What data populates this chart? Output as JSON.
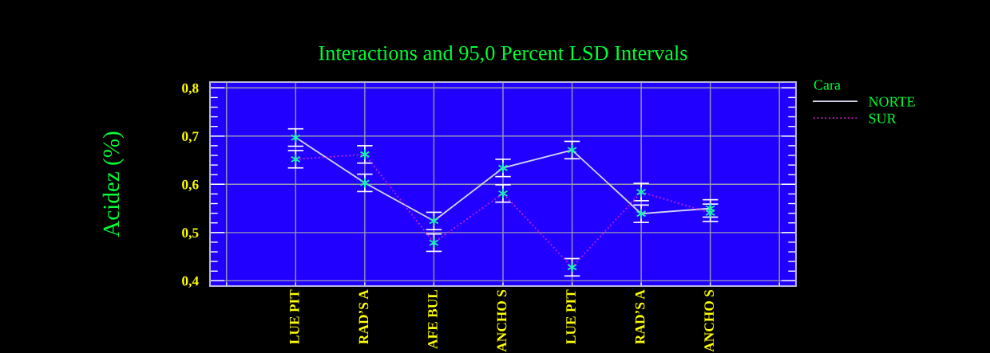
{
  "chart_data": {
    "type": "line",
    "title": "Interactions and 95,0 Percent LSD Intervals",
    "ylabel": "Acidez (%)",
    "legend_title": "Cara",
    "categories": [
      "LUE PIT",
      "RAD’S A",
      "AFE BUL",
      "ANCHO S",
      "LUE PIT",
      "RAD’S A",
      "ANCHO S"
    ],
    "series": [
      {
        "name": "NORTE",
        "color": "#d8d8ec",
        "line_style": "solid",
        "values": [
          0.697,
          0.603,
          0.524,
          0.634,
          0.671,
          0.539,
          0.55
        ],
        "errors": [
          0.018,
          0.018,
          0.018,
          0.018,
          0.018,
          0.018,
          0.018
        ]
      },
      {
        "name": "SUR",
        "color": "#cc22cc",
        "line_style": "dotted",
        "values": [
          0.652,
          0.662,
          0.479,
          0.581,
          0.428,
          0.584,
          0.541
        ],
        "errors": [
          0.018,
          0.018,
          0.018,
          0.018,
          0.018,
          0.018,
          0.018
        ]
      }
    ],
    "ylim": [
      0.389,
      0.812
    ],
    "yticks": [
      {
        "value": 0.4,
        "label": "0,4"
      },
      {
        "value": 0.5,
        "label": "0,5"
      },
      {
        "value": 0.6,
        "label": "0,6"
      },
      {
        "value": 0.7,
        "label": "0,7"
      },
      {
        "value": 0.8,
        "label": "0,8"
      }
    ],
    "grid": true,
    "legend": "top right",
    "marker": "cross"
  }
}
